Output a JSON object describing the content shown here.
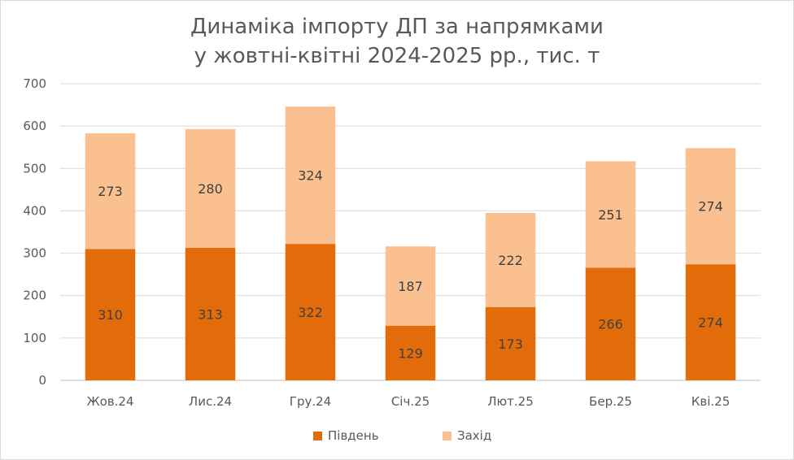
{
  "title_line1": "Динаміка імпорту ДП за напрямками",
  "title_line2": "у жовтні-квітні 2024-2025 рр., тис. т",
  "colors": {
    "south": "#E36C0A",
    "west": "#FAC090",
    "grid": "#d9d9d9",
    "text": "#595959"
  },
  "chart_data": {
    "type": "bar",
    "stacked": true,
    "categories": [
      "Жов.24",
      "Лис.24",
      "Гру.24",
      "Січ.25",
      "Лют.25",
      "Бер.25",
      "Кві.25"
    ],
    "series": [
      {
        "name": "Південь",
        "values": [
          310,
          313,
          322,
          129,
          173,
          266,
          274
        ]
      },
      {
        "name": "Захід",
        "values": [
          273,
          280,
          324,
          187,
          222,
          251,
          274
        ]
      }
    ],
    "ylim": [
      0,
      700
    ],
    "yticks": [
      0,
      100,
      200,
      300,
      400,
      500,
      600,
      700
    ],
    "grid": true,
    "legend_position": "bottom"
  },
  "legend": [
    {
      "label": "Південь",
      "icon": "square-swatch"
    },
    {
      "label": "Захід",
      "icon": "square-swatch"
    }
  ]
}
